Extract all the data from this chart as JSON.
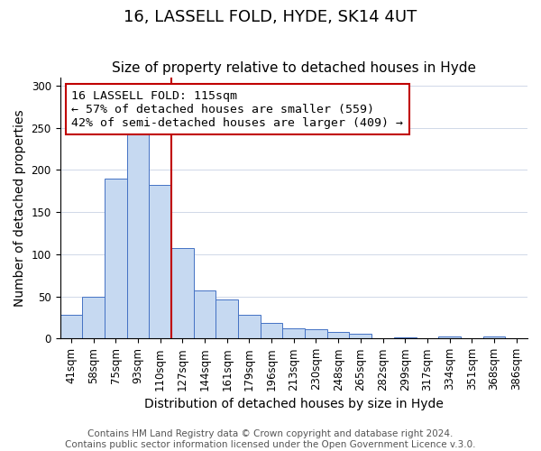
{
  "title": "16, LASSELL FOLD, HYDE, SK14 4UT",
  "subtitle": "Size of property relative to detached houses in Hyde",
  "xlabel": "Distribution of detached houses by size in Hyde",
  "ylabel": "Number of detached properties",
  "bar_labels": [
    "41sqm",
    "58sqm",
    "75sqm",
    "93sqm",
    "110sqm",
    "127sqm",
    "144sqm",
    "161sqm",
    "179sqm",
    "196sqm",
    "213sqm",
    "230sqm",
    "248sqm",
    "265sqm",
    "282sqm",
    "299sqm",
    "317sqm",
    "334sqm",
    "351sqm",
    "368sqm",
    "386sqm"
  ],
  "bar_values": [
    28,
    50,
    190,
    242,
    182,
    107,
    57,
    46,
    28,
    19,
    12,
    11,
    8,
    6,
    0,
    1,
    0,
    2,
    0,
    2,
    0
  ],
  "bar_color": "#c6d9f1",
  "bar_edge_color": "#4472c4",
  "vline_x": 4.5,
  "vline_color": "#c00000",
  "annotation_title": "16 LASSELL FOLD: 115sqm",
  "annotation_line1": "← 57% of detached houses are smaller (559)",
  "annotation_line2": "42% of semi-detached houses are larger (409) →",
  "annotation_box_edge": "#c00000",
  "ylim": [
    0,
    310
  ],
  "yticks": [
    0,
    50,
    100,
    150,
    200,
    250,
    300
  ],
  "footer1": "Contains HM Land Registry data © Crown copyright and database right 2024.",
  "footer2": "Contains public sector information licensed under the Open Government Licence v.3.0.",
  "title_fontsize": 13,
  "subtitle_fontsize": 11,
  "axis_label_fontsize": 10,
  "tick_fontsize": 8.5,
  "annotation_fontsize": 9.5,
  "footer_fontsize": 7.5
}
